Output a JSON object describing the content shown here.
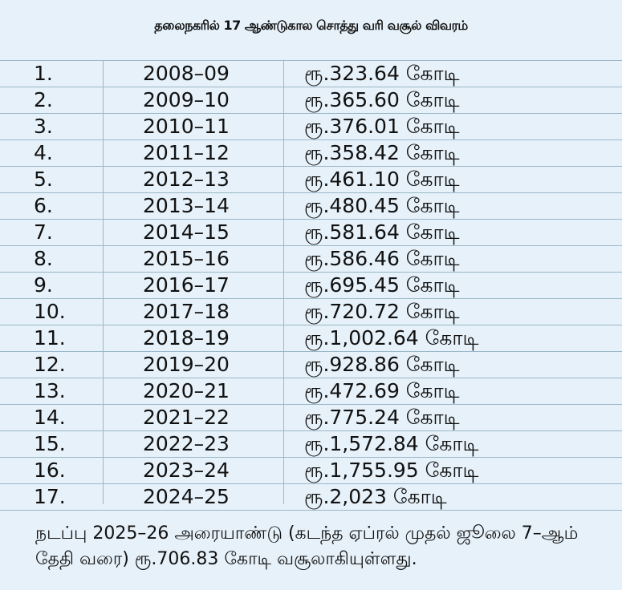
{
  "title": "தலைநகரில் 17 ஆண்டுகால சொத்து வரி வசூல் விவரம்",
  "rows": [
    {
      "no": "1.",
      "year": "2008–09",
      "amount": "ரூ.323.64 கோடி"
    },
    {
      "no": "2.",
      "year": "2009–10",
      "amount": "ரூ.365.60 கோடி"
    },
    {
      "no": "3.",
      "year": "2010–11",
      "amount": "ரூ.376.01 கோடி"
    },
    {
      "no": "4.",
      "year": "2011–12",
      "amount": "ரூ.358.42 கோடி"
    },
    {
      "no": "5.",
      "year": "2012–13",
      "amount": "ரூ.461.10 கோடி"
    },
    {
      "no": "6.",
      "year": "2013–14",
      "amount": "ரூ.480.45 கோடி"
    },
    {
      "no": "7.",
      "year": "2014–15",
      "amount": "ரூ.581.64 கோடி"
    },
    {
      "no": "8.",
      "year": "2015–16",
      "amount": "ரூ.586.46 கோடி"
    },
    {
      "no": "9.",
      "year": "2016–17",
      "amount": "ரூ.695.45 கோடி"
    },
    {
      "no": "10.",
      "year": "2017–18",
      "amount": "ரூ.720.72 கோடி"
    },
    {
      "no": "11.",
      "year": "2018–19",
      "amount": "ரூ.1,002.64 கோடி"
    },
    {
      "no": "12.",
      "year": "2019–20",
      "amount": "ரூ.928.86 கோடி"
    },
    {
      "no": "13.",
      "year": "2020–21",
      "amount": "ரூ.472.69 கோடி"
    },
    {
      "no": "14.",
      "year": "2021–22",
      "amount": "ரூ.775.24 கோடி"
    },
    {
      "no": "15.",
      "year": "2022–23",
      "amount": "ரூ.1,572.84 கோடி"
    },
    {
      "no": "16.",
      "year": "2023–24",
      "amount": "ரூ.1,755.95 கோடி"
    },
    {
      "no": "17.",
      "year": "2024–25",
      "amount": "ரூ.2,023 கோடி"
    }
  ],
  "note": "நடப்பு 2025–26 அரையாண்டு (கடந்த ஏப்ரல் முதல் ஜூலை 7–ஆம் தேதி வரை) ரூ.706.83 கோடி வசூலாகியுள்ளது."
}
